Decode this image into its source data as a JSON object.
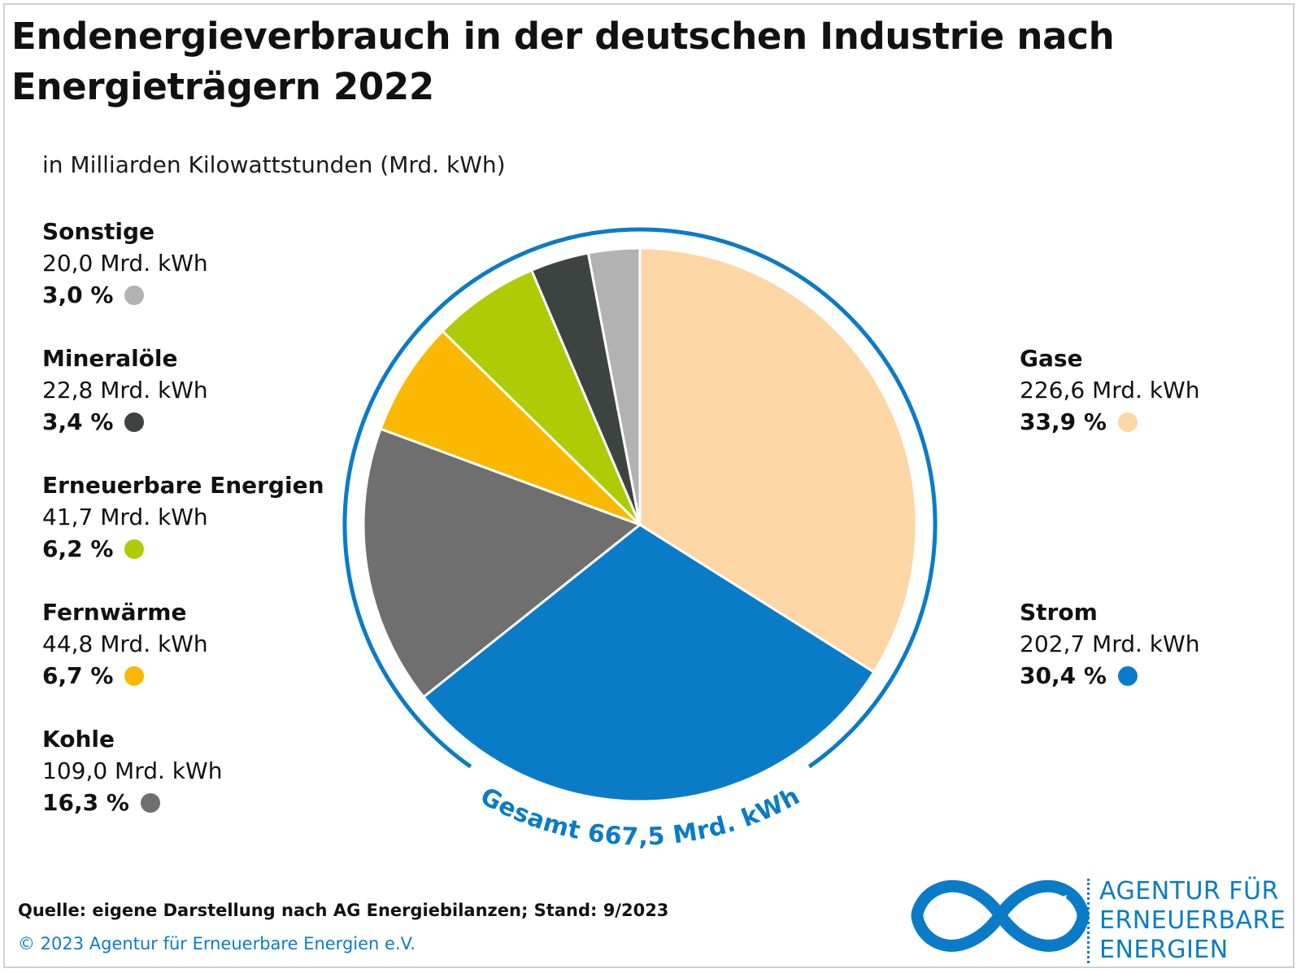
{
  "title": "Endenergieverbrauch in der deutschen Industrie nach Energieträgern 2022",
  "subtitle": "in Milliarden Kilowattstunden (Mrd. kWh)",
  "total_label": "Gesamt 667,5 Mrd. kWh",
  "source": "Quelle: eigene Darstellung nach AG Energiebilanzen; Stand: 9/2023",
  "copyright": "© 2023 Agentur für Erneuerbare Energien e.V.",
  "logo": {
    "line1": "AGENTUR FÜR",
    "line2": "ERNEUERBARE",
    "line3": "ENERGIEN"
  },
  "colors": {
    "accent": "#0a7cc7",
    "ring": "#0a7cc7"
  },
  "chart_data": {
    "type": "pie",
    "title": "Endenergieverbrauch in der deutschen Industrie nach Energieträgern 2022",
    "unit": "Mrd. kWh",
    "total": 667.5,
    "slices": [
      {
        "name": "Gase",
        "value": 226.6,
        "value_label": "226,6 Mrd. kWh",
        "percent_label": "33,9 %",
        "color": "#fdd6a6"
      },
      {
        "name": "Strom",
        "value": 202.7,
        "value_label": "202,7 Mrd. kWh",
        "percent_label": "30,4 %",
        "color": "#0a7cc7"
      },
      {
        "name": "Kohle",
        "value": 109.0,
        "value_label": "109,0 Mrd. kWh",
        "percent_label": "16,3 %",
        "color": "#706f6f"
      },
      {
        "name": "Fernwärme",
        "value": 44.8,
        "value_label": "44,8 Mrd. kWh",
        "percent_label": "6,7 %",
        "color": "#fab900"
      },
      {
        "name": "Erneuerbare Energien",
        "value": 41.7,
        "value_label": "41,7 Mrd. kWh",
        "percent_label": "6,2 %",
        "color": "#aecb06"
      },
      {
        "name": "Mineralöle",
        "value": 22.8,
        "value_label": "22,8 Mrd. kWh",
        "percent_label": "3,4 %",
        "color": "#3d4340"
      },
      {
        "name": "Sonstige",
        "value": 20.0,
        "value_label": "20,0 Mrd. kWh",
        "percent_label": "3,0 %",
        "color": "#b2b2b2"
      }
    ]
  }
}
